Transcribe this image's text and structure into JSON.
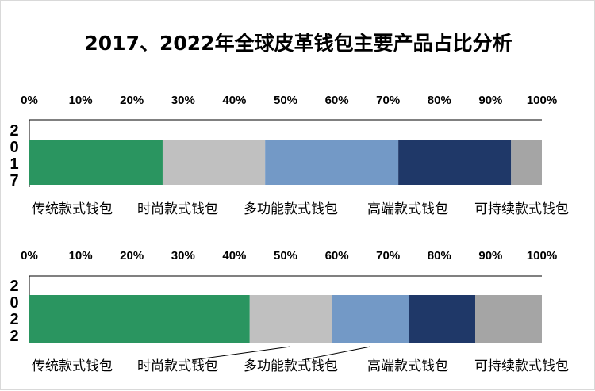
{
  "chart_data": {
    "type": "bar",
    "orientation": "horizontal-stacked-percent",
    "title": "2017、2022年全球皮革钱包主要产品占比分析",
    "xlim": [
      0,
      100
    ],
    "x_ticks": [
      "0%",
      "10%",
      "20%",
      "30%",
      "40%",
      "50%",
      "60%",
      "70%",
      "80%",
      "90%",
      "100%"
    ],
    "grid": false,
    "legend_position": "bottom",
    "series_names": [
      "传统款式钱包",
      "时尚款式钱包",
      "多功能款式钱包",
      "高端款式钱包",
      "可持续款式钱包"
    ],
    "series_colors": [
      "#2a9560",
      "#c0c0c0",
      "#7399c6",
      "#1f3868",
      "#a5a5a5"
    ],
    "panels": [
      {
        "category": "2017",
        "values": [
          26,
          20,
          26,
          22,
          6
        ]
      },
      {
        "category": "2022",
        "values": [
          43,
          16,
          15,
          13,
          13
        ]
      }
    ]
  }
}
